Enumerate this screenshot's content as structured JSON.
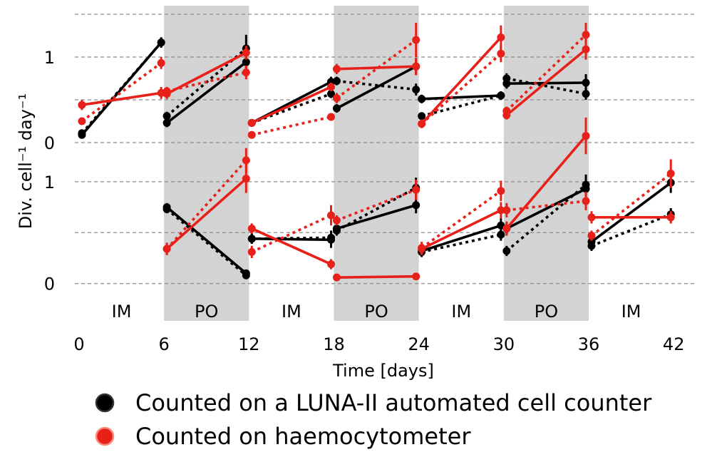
{
  "chart_data": {
    "type": "line",
    "xlabel": "Time [days]",
    "ylabel": "Div. cell⁻¹ day⁻¹",
    "xticks": [
      0,
      6,
      12,
      18,
      24,
      30,
      36,
      42
    ],
    "xlim": [
      -0.3,
      43.5
    ],
    "phases": [
      {
        "label": "IM",
        "start": 0,
        "end": 6,
        "shaded": false
      },
      {
        "label": "PO",
        "start": 6,
        "end": 12,
        "shaded": true
      },
      {
        "label": "IM",
        "start": 12,
        "end": 18,
        "shaded": false
      },
      {
        "label": "PO",
        "start": 18,
        "end": 24,
        "shaded": true
      },
      {
        "label": "IM",
        "start": 24,
        "end": 30,
        "shaded": false
      },
      {
        "label": "PO",
        "start": 30,
        "end": 36,
        "shaded": true
      },
      {
        "label": "IM",
        "start": 36,
        "end": 42,
        "shaded": false
      }
    ],
    "panels": [
      {
        "ylim": [
          -0.1,
          1.6
        ],
        "yticks": [
          0,
          1
        ],
        "gridlines": [
          0,
          0.5,
          1,
          1.5
        ],
        "series": [
          {
            "color": "#000000",
            "style": "solid",
            "segments": [
              [
                [
                  0.2,
                  0.09,
                  0.02
                ],
                [
                  5.8,
                  1.17,
                  0.06
                ]
              ],
              [
                [
                  6.2,
                  0.23,
                  0.05
                ],
                [
                  11.8,
                  0.94,
                  0.08
                ]
              ],
              [
                [
                  12.2,
                  0.23,
                  0.04
                ],
                [
                  17.8,
                  0.71,
                  0.06
                ]
              ],
              [
                [
                  18.2,
                  0.4,
                  0.05
                ],
                [
                  23.8,
                  0.89,
                  0.1
                ]
              ],
              [
                [
                  24.2,
                  0.51,
                  0.05
                ],
                [
                  29.8,
                  0.55,
                  0.05
                ]
              ],
              [
                [
                  30.2,
                  0.69,
                  0.06
                ],
                [
                  35.8,
                  0.7,
                  0.1
                ]
              ]
            ]
          },
          {
            "color": "#000000",
            "style": "dotted",
            "segments": [
              [
                [
                  0.2,
                  0.11,
                  0.02
                ],
                [
                  5.8,
                  1.17,
                  0.06
                ]
              ],
              [
                [
                  6.2,
                  0.31,
                  0.05
                ],
                [
                  11.8,
                  1.1,
                  0.16
                ]
              ],
              [
                [
                  12.2,
                  0.23,
                  0.04
                ],
                [
                  17.8,
                  0.57,
                  0.05
                ]
              ],
              [
                [
                  18.2,
                  0.72,
                  0.05
                ],
                [
                  23.8,
                  0.62,
                  0.07
                ]
              ],
              [
                [
                  24.2,
                  0.31,
                  0.04
                ],
                [
                  29.8,
                  0.55,
                  0.05
                ]
              ],
              [
                [
                  30.2,
                  0.75,
                  0.06
                ],
                [
                  35.8,
                  0.57,
                  0.07
                ]
              ]
            ]
          },
          {
            "color": "#e8201a",
            "style": "solid",
            "segments": [
              [
                [
                  0.2,
                  0.44,
                  0.06
                ],
                [
                  5.8,
                  0.58,
                  0.07
                ]
              ],
              [
                [
                  6.2,
                  0.57,
                  0.06
                ],
                [
                  11.8,
                  1.05,
                  0.08
                ]
              ],
              [
                [
                  12.2,
                  0.23,
                  0.04
                ],
                [
                  17.8,
                  0.65,
                  0.05
                ]
              ],
              [
                [
                  18.2,
                  0.86,
                  0.06
                ],
                [
                  23.8,
                  0.89,
                  0.1
                ]
              ],
              [
                [
                  24.2,
                  0.22,
                  0.05
                ],
                [
                  29.8,
                  1.23,
                  0.14
                ]
              ],
              [
                [
                  30.2,
                  0.32,
                  0.05
                ],
                [
                  35.8,
                  1.09,
                  0.12
                ]
              ]
            ]
          },
          {
            "color": "#e8201a",
            "style": "dotted",
            "segments": [
              [
                [
                  0.2,
                  0.25,
                  0.04
                ],
                [
                  5.8,
                  0.93,
                  0.07
                ]
              ],
              [
                [
                  6.2,
                  0.6,
                  0.05
                ],
                [
                  11.8,
                  0.82,
                  0.08
                ]
              ],
              [
                [
                  12.2,
                  0.09,
                  0.03
                ],
                [
                  17.8,
                  0.3,
                  0.04
                ]
              ],
              [
                [
                  18.2,
                  0.52,
                  0.06
                ],
                [
                  23.8,
                  1.2,
                  0.2
                ]
              ],
              [
                [
                  24.2,
                  0.22,
                  0.05
                ],
                [
                  29.8,
                  1.04,
                  0.1
                ]
              ],
              [
                [
                  30.2,
                  0.37,
                  0.05
                ],
                [
                  35.8,
                  1.26,
                  0.14
                ]
              ]
            ]
          }
        ]
      },
      {
        "ylim": [
          -0.1,
          1.3
        ],
        "yticks": [
          0,
          1
        ],
        "gridlines": [
          0,
          0.5,
          1
        ],
        "series": [
          {
            "color": "#000000",
            "style": "solid",
            "segments": [
              [
                [
                  6.2,
                  0.75,
                  0.04
                ],
                [
                  11.8,
                  0.1,
                  0.03
                ]
              ],
              [
                [
                  12.2,
                  0.44,
                  0.05
                ],
                [
                  17.8,
                  0.43,
                  0.08
                ]
              ],
              [
                [
                  18.2,
                  0.54,
                  0.05
                ],
                [
                  23.8,
                  0.77,
                  0.08
                ]
              ],
              [
                [
                  24.2,
                  0.32,
                  0.05
                ],
                [
                  29.8,
                  0.57,
                  0.07
                ]
              ],
              [
                [
                  30.2,
                  0.54,
                  0.06
                ],
                [
                  35.8,
                  0.93,
                  0.08
                ]
              ],
              [
                [
                  36.2,
                  0.41,
                  0.05
                ],
                [
                  41.8,
                  0.99,
                  0.1
                ]
              ]
            ]
          },
          {
            "color": "#000000",
            "style": "dotted",
            "segments": [
              [
                [
                  6.2,
                  0.73,
                  0.04
                ],
                [
                  11.8,
                  0.08,
                  0.03
                ]
              ],
              [
                [
                  12.2,
                  0.44,
                  0.05
                ],
                [
                  17.8,
                  0.45,
                  0.07
                ]
              ],
              [
                [
                  18.2,
                  0.52,
                  0.05
                ],
                [
                  23.8,
                  0.94,
                  0.1
                ]
              ],
              [
                [
                  24.2,
                  0.31,
                  0.05
                ],
                [
                  29.8,
                  0.48,
                  0.06
                ]
              ],
              [
                [
                  30.2,
                  0.32,
                  0.05
                ],
                [
                  35.8,
                  0.97,
                  0.1
                ]
              ],
              [
                [
                  36.2,
                  0.37,
                  0.05
                ],
                [
                  41.8,
                  0.68,
                  0.06
                ]
              ]
            ]
          },
          {
            "color": "#e8201a",
            "style": "solid",
            "segments": [
              [
                [
                  6.2,
                  0.34,
                  0.06
                ],
                [
                  11.8,
                  1.03,
                  0.14
                ]
              ],
              [
                [
                  12.2,
                  0.54,
                  0.05
                ],
                [
                  17.8,
                  0.19,
                  0.05
                ]
              ],
              [
                [
                  18.2,
                  0.06,
                  0.02
                ],
                [
                  23.8,
                  0.07,
                  0.02
                ]
              ],
              [
                [
                  24.2,
                  0.34,
                  0.06
                ],
                [
                  29.8,
                  0.72,
                  0.08
                ]
              ],
              [
                [
                  30.2,
                  0.54,
                  0.07
                ],
                [
                  35.8,
                  1.45,
                  0.18
                ]
              ],
              [
                [
                  36.2,
                  0.65,
                  0.06
                ],
                [
                  41.8,
                  0.65,
                  0.06
                ]
              ]
            ]
          },
          {
            "color": "#e8201a",
            "style": "dotted",
            "segments": [
              [
                [
                  6.2,
                  0.34,
                  0.06
                ],
                [
                  11.8,
                  1.21,
                  0.12
                ]
              ],
              [
                [
                  12.2,
                  0.31,
                  0.06
                ],
                [
                  17.8,
                  0.67,
                  0.1
                ]
              ],
              [
                [
                  18.2,
                  0.62,
                  0.05
                ],
                [
                  23.8,
                  0.92,
                  0.1
                ]
              ],
              [
                [
                  24.2,
                  0.35,
                  0.06
                ],
                [
                  29.8,
                  0.91,
                  0.1
                ]
              ],
              [
                [
                  30.2,
                  0.72,
                  0.07
                ],
                [
                  35.8,
                  0.81,
                  0.09
                ]
              ],
              [
                [
                  36.2,
                  0.47,
                  0.05
                ],
                [
                  41.8,
                  1.08,
                  0.14
                ]
              ]
            ]
          }
        ]
      }
    ],
    "legend": [
      {
        "label": "Counted on a LUNA-II automated cell counter",
        "color": "#000000"
      },
      {
        "label": "Counted on haemocytometer",
        "color": "#e8201a"
      }
    ],
    "legend_position": "bottom-left",
    "grid": "dashed horizontal"
  }
}
